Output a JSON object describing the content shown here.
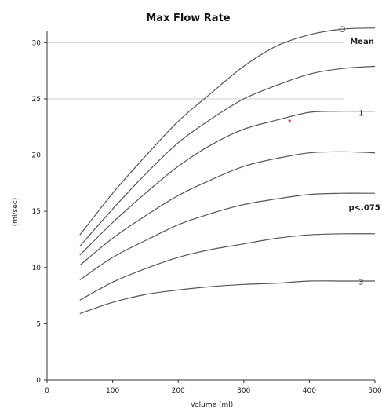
{
  "chart_data": {
    "type": "line",
    "title": "Max Flow Rate",
    "xlabel": "Volume (ml)",
    "ylabel": "(ml/sec)",
    "xlim": [
      0,
      500
    ],
    "ylim": [
      0,
      31
    ],
    "xticks": [
      0,
      100,
      200,
      300,
      400,
      500
    ],
    "yticks": [
      0,
      5,
      10,
      15,
      20,
      25,
      30
    ],
    "xtick_labels": [
      "0",
      "100",
      "200",
      "300",
      "400",
      "500"
    ],
    "ytick_labels": [
      "0",
      "5",
      "10",
      "15",
      "20",
      "25",
      "30"
    ],
    "grid_lines_y": [
      25,
      30
    ],
    "x": [
      50,
      100,
      150,
      200,
      250,
      300,
      350,
      400,
      450,
      500
    ],
    "series": [
      {
        "name": "Mean",
        "values": [
          12.9,
          16.6,
          19.9,
          23.0,
          25.5,
          27.9,
          29.7,
          30.7,
          31.2,
          31.3
        ]
      },
      {
        "name": "",
        "values": [
          11.9,
          15.2,
          18.3,
          21.1,
          23.2,
          25.0,
          26.2,
          27.2,
          27.7,
          27.9
        ]
      },
      {
        "name": "1",
        "values": [
          11.1,
          14.0,
          16.6,
          19.0,
          20.9,
          22.3,
          23.1,
          23.8,
          23.9,
          23.9
        ]
      },
      {
        "name": "",
        "values": [
          10.2,
          12.6,
          14.6,
          16.4,
          17.8,
          19.0,
          19.7,
          20.2,
          20.3,
          20.2
        ]
      },
      {
        "name": "p<.075",
        "values": [
          8.9,
          10.9,
          12.4,
          13.8,
          14.8,
          15.6,
          16.1,
          16.5,
          16.6,
          16.6
        ]
      },
      {
        "name": "",
        "values": [
          7.1,
          8.7,
          9.9,
          10.9,
          11.6,
          12.1,
          12.6,
          12.9,
          13.0,
          13.0
        ]
      },
      {
        "name": "3",
        "values": [
          5.9,
          6.9,
          7.6,
          8.0,
          8.3,
          8.5,
          8.6,
          8.8,
          8.8,
          8.8
        ]
      }
    ],
    "curve_labels": [
      {
        "text": "Mean",
        "x": 462,
        "y": 29.9,
        "bold": true
      },
      {
        "text": "1",
        "x": 475,
        "y": 23.5,
        "bold": false
      },
      {
        "text": "p<.075",
        "x": 460,
        "y": 15.1,
        "bold": true
      },
      {
        "text": "3",
        "x": 475,
        "y": 8.5,
        "bold": false
      }
    ],
    "markers": [
      {
        "x": 450,
        "y": 31.2,
        "shape": "circle",
        "color": "#444444"
      },
      {
        "x": 370,
        "y": 23.0,
        "shape": "star",
        "color": "#d0406a"
      }
    ],
    "grid": false,
    "legend": "none"
  }
}
